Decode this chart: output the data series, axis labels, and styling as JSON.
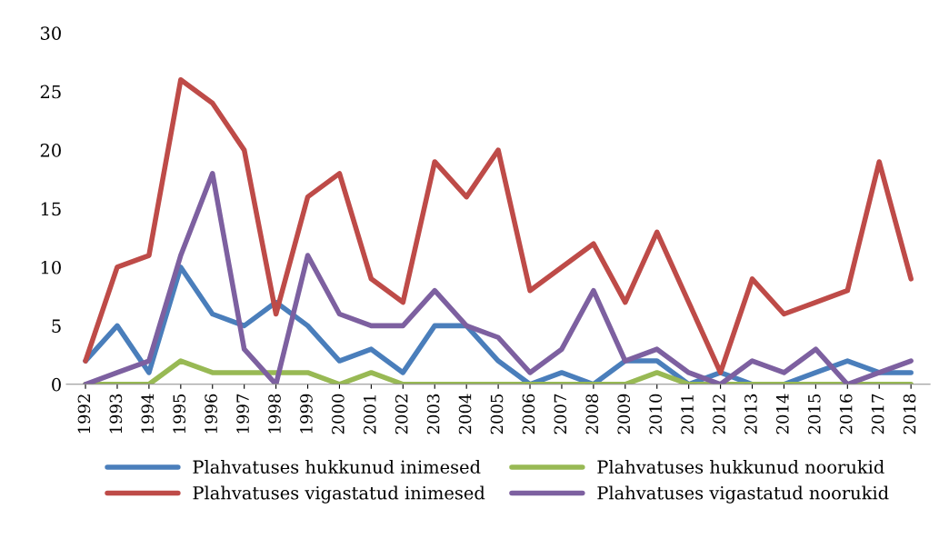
{
  "chart_data": {
    "type": "line",
    "categories": [
      "1992",
      "1993",
      "1994",
      "1995",
      "1996",
      "1997",
      "1998",
      "1999",
      "2000",
      "2001",
      "2002",
      "2003",
      "2004",
      "2005",
      "2006",
      "2007",
      "2008",
      "2009",
      "2010",
      "2011",
      "2012",
      "2013",
      "2014",
      "2015",
      "2016",
      "2017",
      "2018"
    ],
    "series": [
      {
        "name": "Plahvatuses hukkunud inimesed",
        "color": "#4a7ebb",
        "values": [
          2,
          5,
          1,
          10,
          6,
          5,
          7,
          5,
          2,
          3,
          1,
          5,
          5,
          2,
          0,
          1,
          0,
          2,
          2,
          0,
          1,
          0,
          0,
          1,
          2,
          1,
          1
        ]
      },
      {
        "name": "Plahvatuses vigastatud inimesed",
        "color": "#be4b48",
        "values": [
          2,
          10,
          11,
          26,
          24,
          20,
          6,
          16,
          18,
          9,
          7,
          19,
          16,
          20,
          8,
          10,
          12,
          7,
          13,
          7,
          1,
          9,
          6,
          7,
          8,
          19,
          9
        ]
      },
      {
        "name": "Plahvatuses hukkunud noorukid",
        "color": "#98b954",
        "values": [
          0,
          0,
          0,
          2,
          1,
          1,
          1,
          1,
          0,
          1,
          0,
          0,
          0,
          0,
          0,
          0,
          0,
          0,
          1,
          0,
          0,
          0,
          0,
          0,
          0,
          0,
          0
        ]
      },
      {
        "name": "Plahvatuses vigastatud noorukid",
        "color": "#7d60a0",
        "values": [
          0,
          1,
          2,
          11,
          18,
          3,
          0,
          11,
          6,
          5,
          5,
          8,
          5,
          4,
          1,
          3,
          8,
          2,
          3,
          1,
          0,
          2,
          1,
          3,
          0,
          1,
          2
        ]
      }
    ],
    "ylim": [
      0,
      30
    ],
    "yticks": [
      0,
      5,
      10,
      15,
      20,
      25,
      30
    ],
    "grid": false,
    "legend": "bottom",
    "marker": "none",
    "line_style": "solid"
  }
}
